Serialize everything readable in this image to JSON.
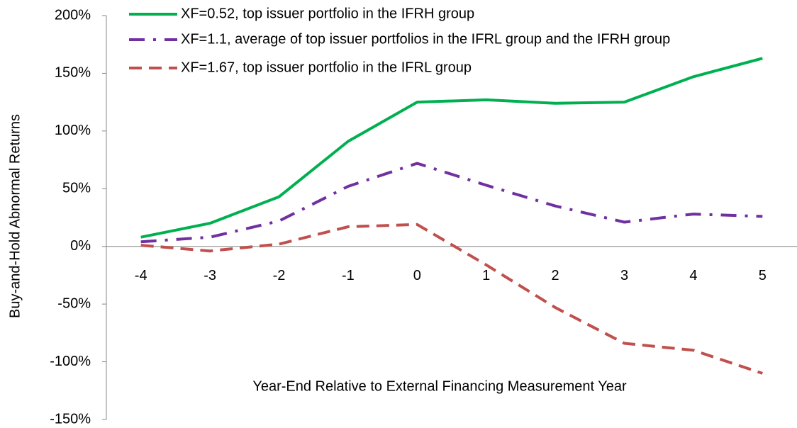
{
  "chart_data": {
    "type": "line",
    "ylabel": "Buy-and-Hold Abnormal  Returns",
    "xlabel": "Year-End Relative to External Financing Measurement Year",
    "categories": [
      "-4",
      "-3",
      "-2",
      "-1",
      "0",
      "1",
      "2",
      "3",
      "4",
      "5"
    ],
    "ylim": [
      -150,
      200
    ],
    "yticks": [
      {
        "value": -150,
        "label": "-150%"
      },
      {
        "value": -100,
        "label": "-100%"
      },
      {
        "value": -50,
        "label": "-50%"
      },
      {
        "value": 0,
        "label": "0%"
      },
      {
        "value": 50,
        "label": "50%"
      },
      {
        "value": 100,
        "label": "100%"
      },
      {
        "value": 150,
        "label": "150%"
      },
      {
        "value": 200,
        "label": "200%"
      }
    ],
    "legend": "top-left",
    "series": [
      {
        "name": "XF=0.52, top issuer portfolio in the IFRH group",
        "color": "#00b050",
        "dash": "solid",
        "values": [
          8,
          20,
          43,
          91,
          125,
          127,
          124,
          125,
          147,
          163
        ]
      },
      {
        "name": "XF=1.1, average of top issuer portfolios in the IFRL group and the IFRH group",
        "color": "#7030a0",
        "dash": "dash-dot",
        "values": [
          4,
          8,
          22,
          52,
          72,
          53,
          35,
          21,
          28,
          26
        ]
      },
      {
        "name": "XF=1.67, top issuer portfolio in the IFRL group",
        "color": "#c0504d",
        "dash": "dash",
        "values": [
          1,
          -4,
          2,
          17,
          19,
          -16,
          -53,
          -84,
          -90,
          -110
        ]
      }
    ]
  }
}
